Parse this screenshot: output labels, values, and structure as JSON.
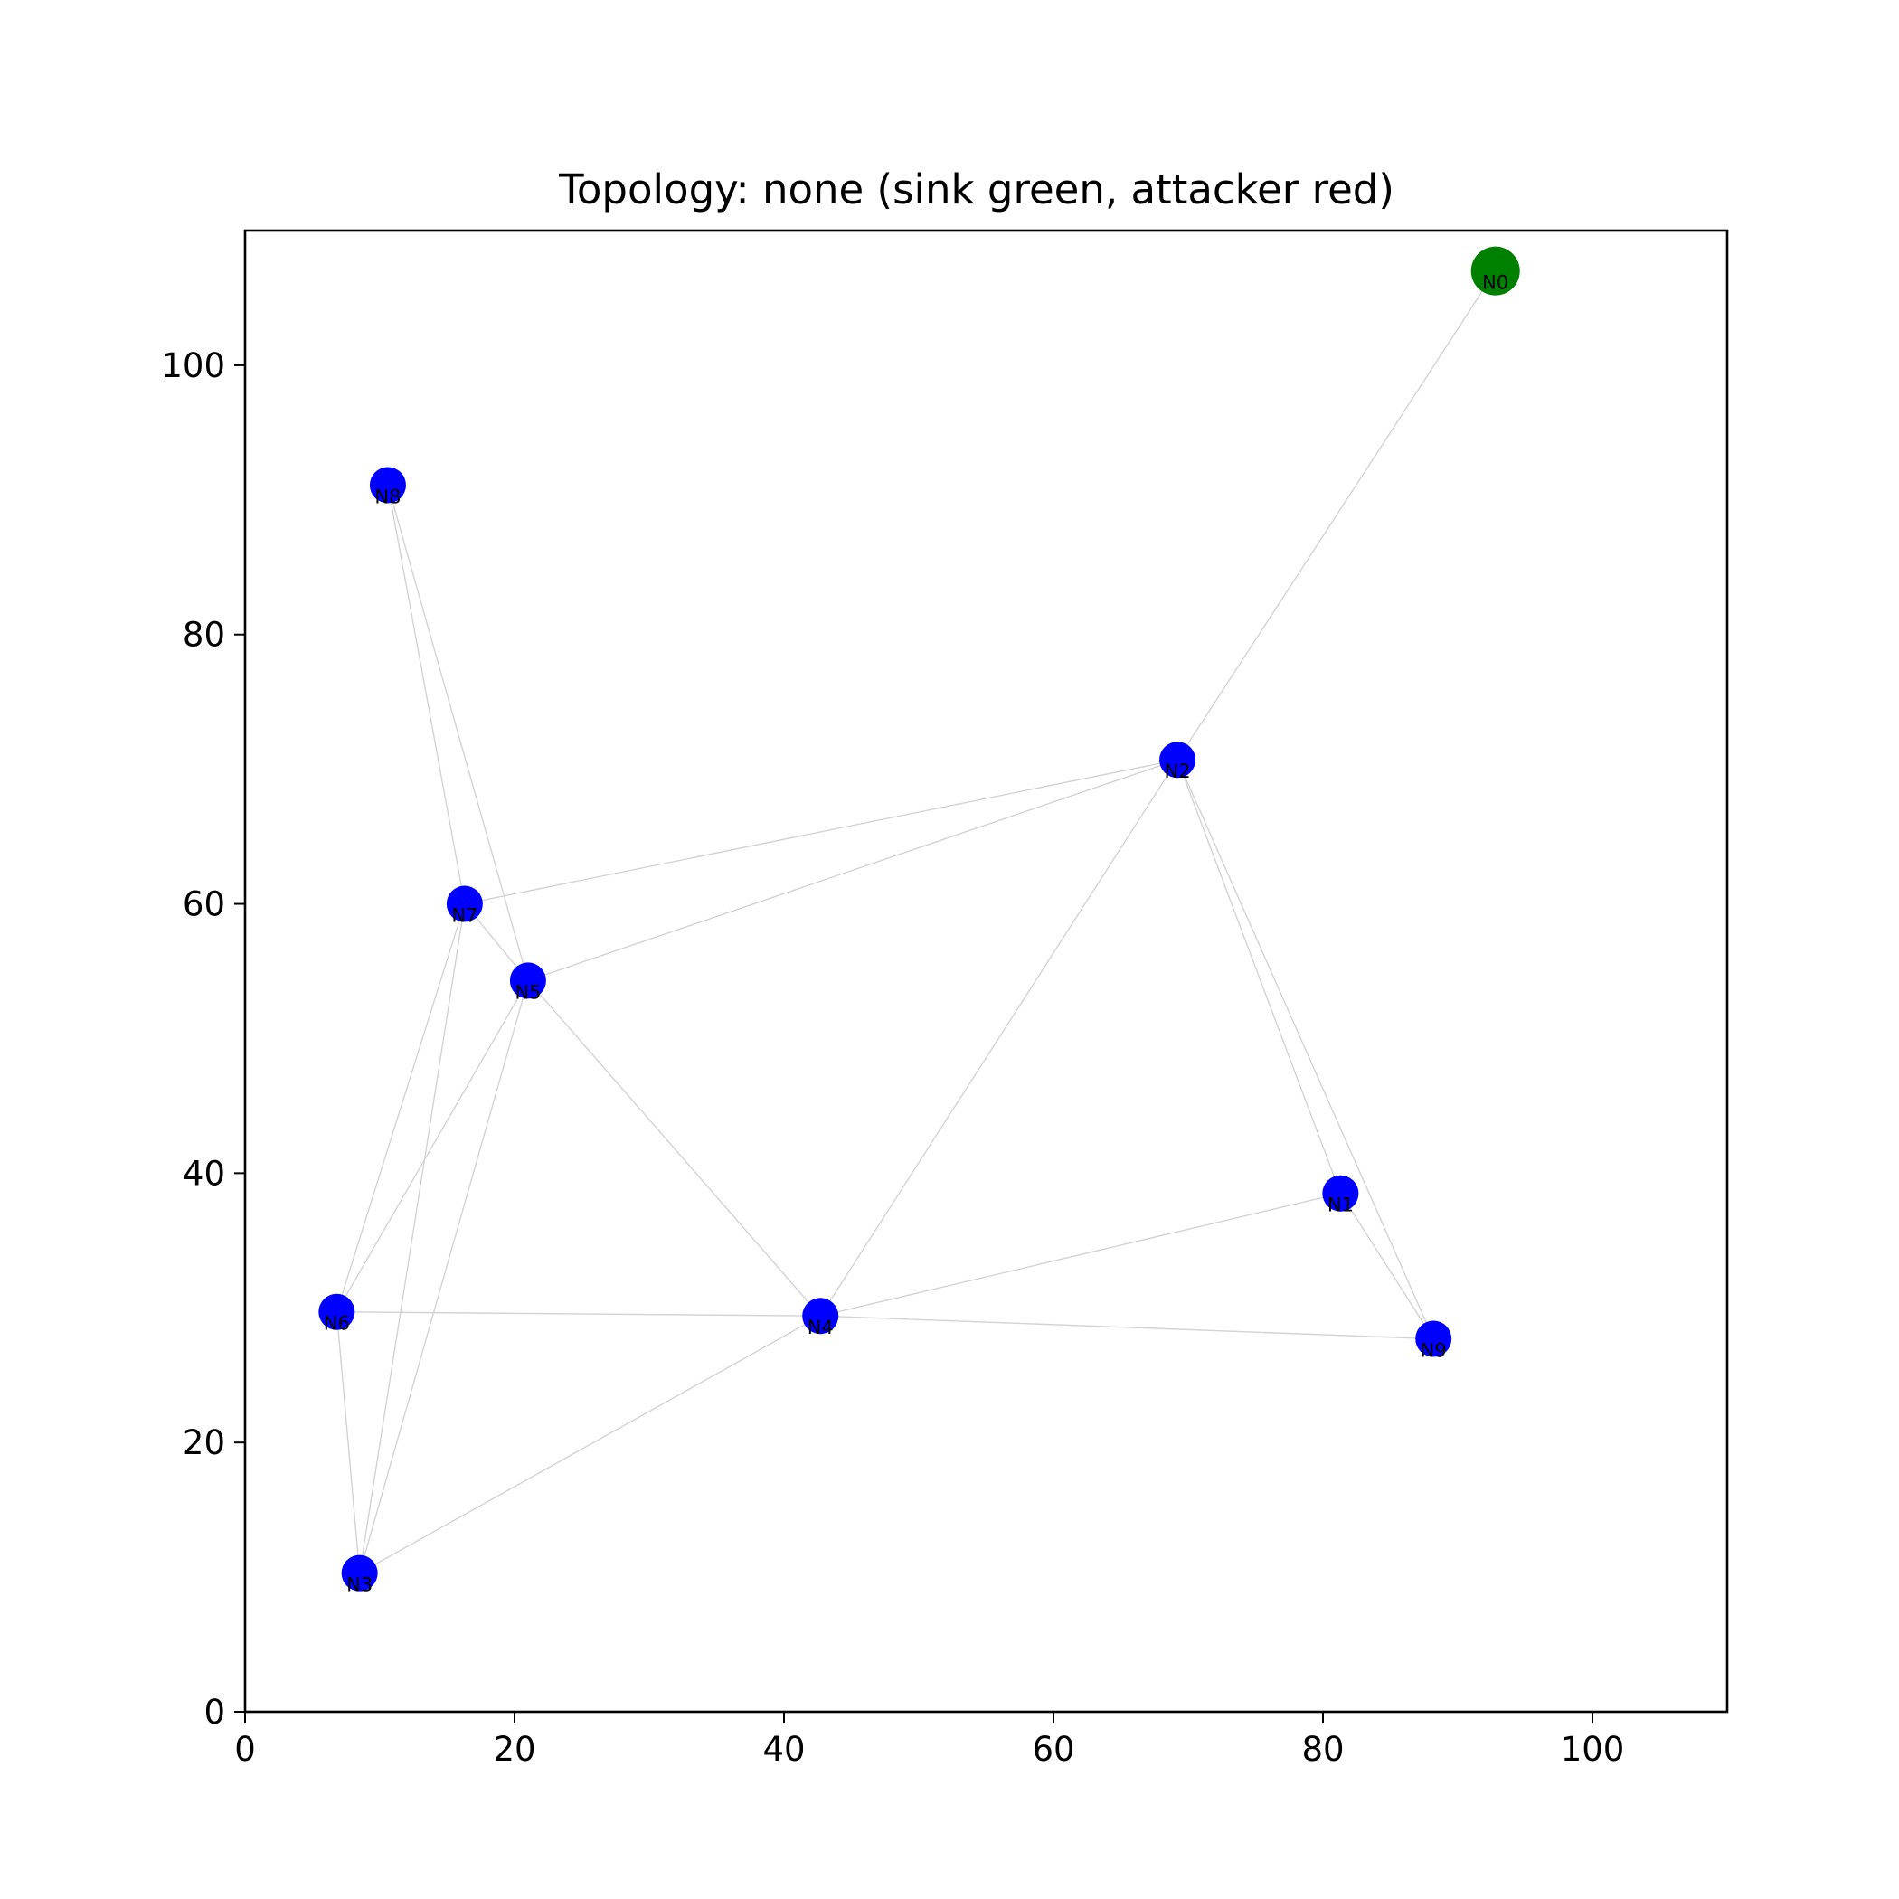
{
  "chart_data": {
    "type": "scatter",
    "title": "Topology: none (sink green, attacker red)",
    "xlabel": "",
    "ylabel": "",
    "xlim": [
      0,
      110
    ],
    "ylim": [
      0,
      110
    ],
    "xticks": [
      0,
      20,
      40,
      60,
      80,
      100
    ],
    "yticks": [
      0,
      20,
      40,
      60,
      80,
      100
    ],
    "grid": false,
    "colors": {
      "sink": "#008000",
      "node": "#0000ff",
      "edge": "#d3d3d3"
    },
    "nodes": [
      {
        "id": "N0",
        "x": 92.8,
        "y": 107.0,
        "role": "sink"
      },
      {
        "id": "N1",
        "x": 81.3,
        "y": 38.5,
        "role": "node"
      },
      {
        "id": "N2",
        "x": 69.2,
        "y": 70.7,
        "role": "node"
      },
      {
        "id": "N3",
        "x": 8.5,
        "y": 10.3,
        "role": "node"
      },
      {
        "id": "N4",
        "x": 42.7,
        "y": 29.4,
        "role": "node"
      },
      {
        "id": "N5",
        "x": 21.0,
        "y": 54.3,
        "role": "node"
      },
      {
        "id": "N6",
        "x": 6.8,
        "y": 29.7,
        "role": "node"
      },
      {
        "id": "N7",
        "x": 16.3,
        "y": 60.0,
        "role": "node"
      },
      {
        "id": "N8",
        "x": 10.6,
        "y": 91.1,
        "role": "node"
      },
      {
        "id": "N9",
        "x": 88.2,
        "y": 27.7,
        "role": "node"
      }
    ],
    "edges": [
      [
        "N0",
        "N2"
      ],
      [
        "N2",
        "N7"
      ],
      [
        "N2",
        "N5"
      ],
      [
        "N2",
        "N4"
      ],
      [
        "N2",
        "N1"
      ],
      [
        "N2",
        "N9"
      ],
      [
        "N8",
        "N7"
      ],
      [
        "N8",
        "N5"
      ],
      [
        "N7",
        "N5"
      ],
      [
        "N7",
        "N6"
      ],
      [
        "N7",
        "N3"
      ],
      [
        "N5",
        "N6"
      ],
      [
        "N5",
        "N3"
      ],
      [
        "N5",
        "N4"
      ],
      [
        "N6",
        "N4"
      ],
      [
        "N6",
        "N3"
      ],
      [
        "N3",
        "N4"
      ],
      [
        "N4",
        "N1"
      ],
      [
        "N4",
        "N9"
      ],
      [
        "N1",
        "N9"
      ]
    ]
  }
}
